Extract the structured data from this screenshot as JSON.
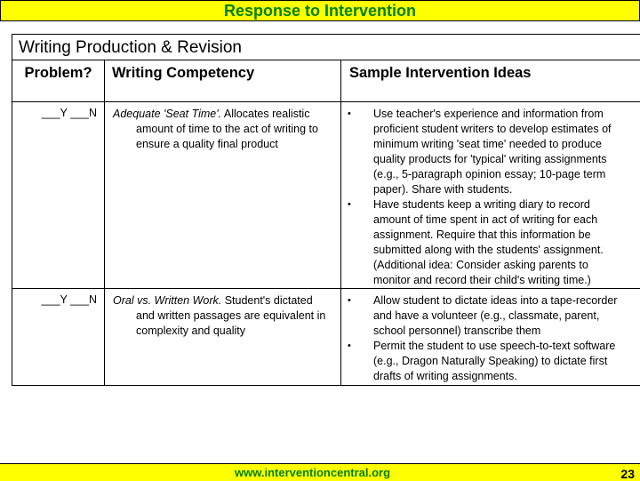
{
  "header": {
    "title": "Response to Intervention"
  },
  "table": {
    "title": "Writing Production & Revision",
    "columns": [
      "Problem?",
      "Writing Competency",
      "Sample Intervention Ideas"
    ],
    "rows": [
      {
        "yn": "___Y ___N",
        "competency_title": "Adequate 'Seat Time'.",
        "competency_text": " Allocates realistic amount of time to the act of writing to ensure a quality final product",
        "ideas": [
          "Use teacher's experience and information from proficient student writers to develop estimates of minimum writing 'seat time' needed to produce quality products for 'typical' writing assignments (e.g., 5-paragraph opinion essay; 10-page term paper). Share with students.",
          "Have students keep a writing diary to record amount of time spent in act of writing for each assignment. Require that this information be submitted along with the students' assignment. (Additional idea: Consider asking parents to monitor and record their child's writing time.)"
        ]
      },
      {
        "yn": "___Y ___N",
        "competency_title": "Oral vs. Written Work.",
        "competency_text": " Student's dictated and written passages are equivalent in complexity and quality",
        "ideas": [
          "Allow student to dictate ideas into a tape-recorder and have a volunteer  (e.g., classmate, parent, school personnel) transcribe them",
          "Permit the student to use speech-to-text software (e.g., Dragon Naturally Speaking) to dictate first drafts of writing assignments."
        ]
      }
    ]
  },
  "footer": {
    "url": "www.interventioncentral.org",
    "page": "23"
  },
  "colors": {
    "bar": "#ffff00",
    "accent": "#008000"
  }
}
